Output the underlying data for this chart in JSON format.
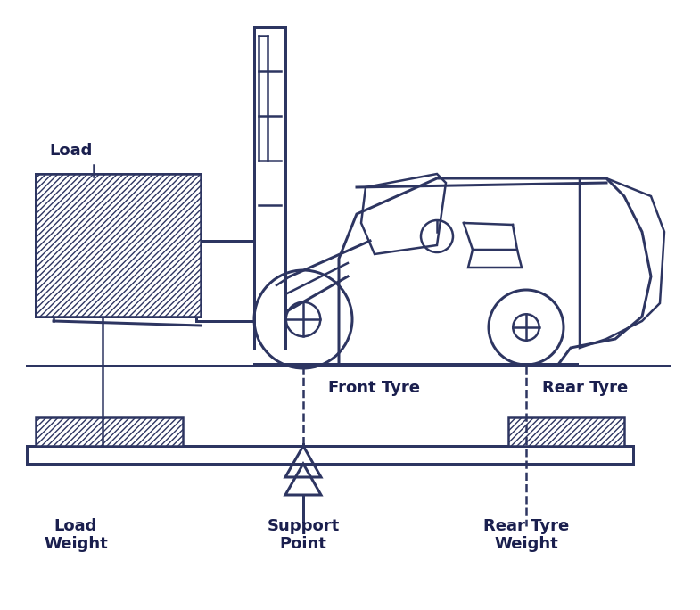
{
  "bg_color": "#ffffff",
  "line_color": "#2d3561",
  "line_width": 1.8,
  "fig_width": 7.85,
  "fig_height": 6.84,
  "dpi": 100,
  "labels": {
    "load": "Load",
    "front_tyre": "Front Tyre",
    "rear_tyre": "Rear Tyre",
    "load_weight": "Load\nWeight",
    "support_point": "Support\nPoint",
    "rear_tyre_weight": "Rear Tyre\nWeight"
  },
  "label_fontsize": 13,
  "label_color": "#1a1f4e",
  "label_fontweight": "bold"
}
